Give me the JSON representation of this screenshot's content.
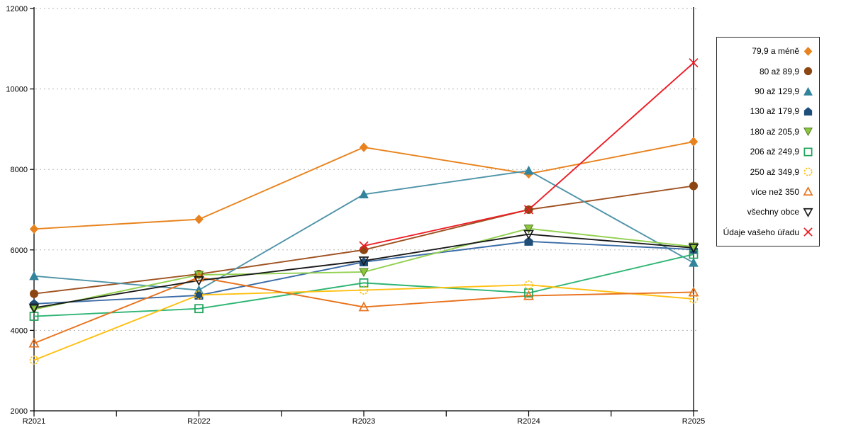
{
  "chart_data": {
    "type": "line",
    "title": "",
    "xlabel": "",
    "ylabel": "",
    "categories": [
      "R2021",
      "R2022",
      "R2023",
      "R2024",
      "R2025"
    ],
    "ylim": [
      2000,
      12000
    ],
    "yticks": [
      2000,
      4000,
      6000,
      8000,
      10000,
      12000
    ],
    "grid": "horizontal-dotted",
    "grid_color": "#b3b3b3",
    "axis_color": "#000000",
    "legend_position": "right-outside",
    "series": [
      {
        "name": "79,9 a méně",
        "marker": "diamond",
        "style": "filled",
        "color": "#e8821e",
        "line_color": "#e8831d",
        "values": [
          6520,
          6760,
          8550,
          7890,
          8690
        ]
      },
      {
        "name": "80 až 89,9",
        "marker": "circle",
        "style": "filled",
        "color": "#8c4613",
        "line_color": "#9f5222",
        "values": [
          4910,
          5400,
          6000,
          7000,
          7590
        ]
      },
      {
        "name": "90 až 129,9",
        "marker": "triangle-up",
        "style": "filled",
        "color": "#31849b",
        "line_color": "#4e93a8",
        "values": [
          5350,
          5000,
          7380,
          7970,
          5680
        ]
      },
      {
        "name": "130 až 179,9",
        "marker": "pentagon",
        "style": "filled",
        "color": "#1f4e79",
        "line_color": "#3c6da6",
        "values": [
          4660,
          4870,
          5700,
          6210,
          6010
        ]
      },
      {
        "name": "180 až 205,9",
        "marker": "triangle-down",
        "style": "filled",
        "color": "#8dc63f",
        "edge_color": "#4e7b1f",
        "line_color": "#92d050",
        "values": [
          4520,
          5380,
          5450,
          6530,
          6080
        ]
      },
      {
        "name": "206 až 249,9",
        "marker": "square",
        "style": "open",
        "color": "#1fa35c",
        "line_color": "#2eb573",
        "values": [
          4350,
          4540,
          5180,
          4930,
          5890
        ]
      },
      {
        "name": "250 až 349,9",
        "marker": "circle",
        "style": "open",
        "color": "#ffc011",
        "line_color": "#ffc011",
        "values": [
          3260,
          4880,
          5000,
          5130,
          4780
        ]
      },
      {
        "name": "více než 350",
        "marker": "triangle-up",
        "style": "open",
        "color": "#e8721c",
        "line_color": "#e8721c",
        "values": [
          3680,
          5320,
          4580,
          4860,
          4950
        ]
      },
      {
        "name": "všechny obce",
        "marker": "triangle-down",
        "style": "open",
        "color": "#1a1a1a",
        "line_color": "#1a1a1a",
        "values": [
          4560,
          5240,
          5730,
          6390,
          6050
        ]
      },
      {
        "name": "Údaje vašeho úřadu",
        "marker": "x",
        "style": "open",
        "color": "#ed1c24",
        "line_color": "#ed1c24",
        "values": [
          null,
          null,
          6100,
          7000,
          10650
        ]
      }
    ]
  }
}
